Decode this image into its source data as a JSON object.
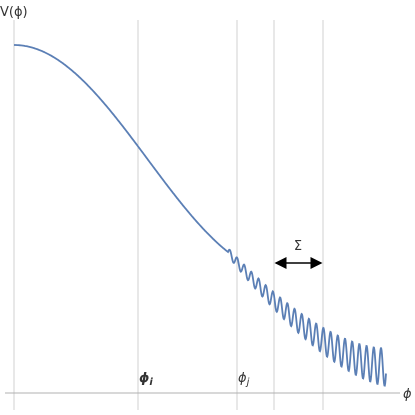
{
  "axes": {
    "y_label": "V(ϕ)",
    "x_label": "ϕ"
  },
  "markers": [
    {
      "symbol": "ϕ",
      "subscript": "i"
    },
    {
      "symbol": "ϕ",
      "subscript": "j"
    }
  ],
  "annotation": "Σ"
}
